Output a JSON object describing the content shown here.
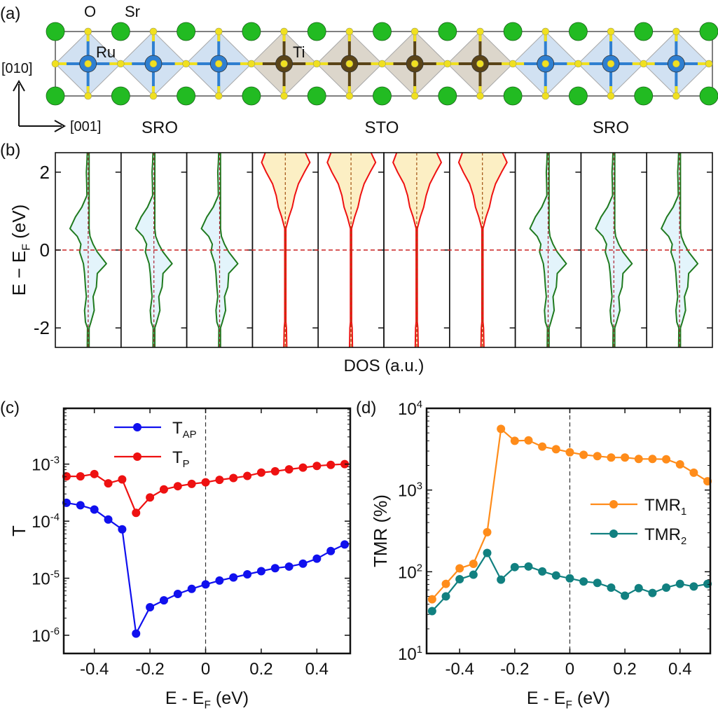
{
  "panel_labels": {
    "a": "(a)",
    "b": "(b)",
    "c": "(c)",
    "d": "(d)"
  },
  "structure": {
    "atom_labels": {
      "O": "O",
      "Sr": "Sr",
      "Ru": "Ru",
      "Ti": "Ti"
    },
    "axis_labels": {
      "vertical": "[010]",
      "horizontal": "[001]"
    },
    "region_labels": [
      "SRO",
      "STO",
      "SRO"
    ],
    "octahedra": [
      "Ru",
      "Ru",
      "Ru",
      "Ti",
      "Ti",
      "Ti",
      "Ti",
      "Ru",
      "Ru",
      "Ru"
    ],
    "colors": {
      "Sr": "#22bb22",
      "O": "#f0e020",
      "Ru": "#2f7fd0",
      "Ti": "#5a4418",
      "RuO6": "#c9dcf0",
      "TiO6": "#d6cfc2"
    }
  },
  "chart_data": [
    {
      "id": "b",
      "type": "area",
      "ylabel": "E − E_F (eV)",
      "ylabel_main": "E − E",
      "ylabel_sub": "F",
      "ylabel_tail": " (eV)",
      "xlabel": "DOS (a.u.)",
      "ylim": [
        -2.5,
        2.5
      ],
      "yticks": [
        2,
        0,
        -2
      ],
      "ytick_labels": [
        "2",
        "0",
        "-2"
      ],
      "layers": [
        "SRO",
        "SRO",
        "SRO",
        "STO",
        "STO",
        "STO",
        "STO",
        "SRO",
        "SRO",
        "SRO"
      ],
      "energy": [
        2.5,
        2.25,
        2.0,
        1.7,
        1.4,
        1.1,
        0.85,
        0.55,
        0.35,
        0.15,
        -0.05,
        -0.35,
        -0.6,
        -0.95,
        -1.2,
        -1.55,
        -1.85,
        -2.0,
        -2.5
      ],
      "dos": {
        "SRO": {
          "left": [
            0.05,
            0.07,
            0.1,
            0.08,
            0.07,
            0.35,
            0.7,
            1.0,
            0.6,
            0.4,
            0.47,
            0.26,
            0.2,
            0.15,
            0.1,
            0.2,
            0.15,
            0.04,
            0.05
          ],
          "right": [
            0.05,
            0.05,
            0.05,
            0.05,
            0.05,
            0.05,
            0.05,
            0.05,
            0.1,
            0.27,
            0.5,
            1.0,
            0.5,
            0.45,
            0.27,
            0.33,
            0.15,
            0.05,
            0.05
          ]
        },
        "STO": {
          "left": [
            1.1,
            1.3,
            1.05,
            0.7,
            0.5,
            0.38,
            0.2,
            0.03,
            0.03,
            0.03,
            0.03,
            0.03,
            0.03,
            0.03,
            0.03,
            0.03,
            0.03,
            0.06,
            0.08
          ],
          "right": [
            1.1,
            1.35,
            1.05,
            0.72,
            0.52,
            0.38,
            0.2,
            0.03,
            0.03,
            0.03,
            0.03,
            0.03,
            0.03,
            0.03,
            0.03,
            0.03,
            0.03,
            0.06,
            0.08
          ]
        }
      },
      "colors": {
        "SRO_line": "#1f7a1f",
        "SRO_fill": "#e3f4fb",
        "STO_line": "#ee1111",
        "STO_fill": "#fcefc4",
        "fermi": "#cc2222"
      }
    },
    {
      "id": "c",
      "type": "line",
      "xlabel_main": "E - E",
      "xlabel_sub": "F",
      "xlabel_tail": " (eV)",
      "ylabel": "T",
      "xlim": [
        -0.51,
        0.52
      ],
      "ylim": [
        4.8e-07,
        0.0095
      ],
      "yscale": "log",
      "xticks": [
        -0.4,
        -0.2,
        0,
        0.2,
        0.4
      ],
      "xtick_labels": [
        "-0.4",
        "-0.2",
        "0",
        "0.2",
        "0.4"
      ],
      "yticks": [
        0.001,
        0.0001,
        1e-05,
        1e-06
      ],
      "ytick_labels": [
        {
          "base": "10",
          "exp": "-3"
        },
        {
          "base": "10",
          "exp": "-4"
        },
        {
          "base": "10",
          "exp": "-5"
        },
        {
          "base": "10",
          "exp": "-6"
        }
      ],
      "legend_position": "top-left",
      "x": [
        -0.5,
        -0.45,
        -0.4,
        -0.35,
        -0.3,
        -0.25,
        -0.2,
        -0.15,
        -0.1,
        -0.05,
        0,
        0.05,
        0.1,
        0.15,
        0.2,
        0.25,
        0.3,
        0.35,
        0.4,
        0.45,
        0.5
      ],
      "series": [
        {
          "name_main": "T",
          "name_sub": "AP",
          "color": "#1010ee",
          "values": [
            0.00021,
            0.00019,
            0.00016,
            0.000107,
            7.2e-05,
            1.07e-06,
            3.1e-06,
            4.1e-06,
            5.3e-06,
            6.5e-06,
            7.8e-06,
            9.1e-06,
            1.03e-05,
            1.17e-05,
            1.33e-05,
            1.5e-05,
            1.6e-05,
            1.8e-05,
            2.2e-05,
            3e-05,
            3.9e-05
          ]
        },
        {
          "name_main": "T",
          "name_sub": "P",
          "color": "#ee1111",
          "values": [
            0.00061,
            0.00061,
            0.00067,
            0.00046,
            0.00054,
            0.00014,
            0.00026,
            0.00036,
            0.00041,
            0.00045,
            0.00048,
            0.00053,
            0.00057,
            0.00062,
            0.00071,
            0.00075,
            0.00081,
            0.00087,
            0.00093,
            0.00097,
            0.001
          ]
        }
      ]
    },
    {
      "id": "d",
      "type": "line",
      "xlabel_main": "E - E",
      "xlabel_sub": "F",
      "xlabel_tail": " (eV)",
      "ylabel": "TMR (%)",
      "xlim": [
        -0.52,
        0.51
      ],
      "ylim": [
        10,
        10000
      ],
      "yscale": "log",
      "xticks": [
        -0.4,
        -0.2,
        0,
        0.2,
        0.4
      ],
      "xtick_labels": [
        "-0.4",
        "-0.2",
        "0",
        "0.2",
        "0.4"
      ],
      "yticks": [
        10000,
        1000,
        100,
        10
      ],
      "ytick_labels": [
        {
          "base": "10",
          "exp": "4"
        },
        {
          "base": "10",
          "exp": "3"
        },
        {
          "base": "10",
          "exp": "2"
        },
        {
          "base": "10",
          "exp": "1"
        }
      ],
      "legend_position": "right",
      "x": [
        -0.5,
        -0.45,
        -0.4,
        -0.35,
        -0.3,
        -0.25,
        -0.2,
        -0.15,
        -0.1,
        -0.05,
        0,
        0.05,
        0.1,
        0.15,
        0.2,
        0.25,
        0.3,
        0.35,
        0.4,
        0.45,
        0.5
      ],
      "series": [
        {
          "name_main": "TMR",
          "name_sub": "1",
          "color": "#ff8c1a",
          "values": [
            46,
            71,
            110,
            125,
            305,
            5600,
            4000,
            4050,
            3400,
            3160,
            2900,
            2700,
            2600,
            2500,
            2500,
            2400,
            2400,
            2380,
            2060,
            1630,
            1280
          ]
        },
        {
          "name_main": "TMR",
          "name_sub": "2",
          "color": "#118080",
          "values": [
            33,
            50,
            81,
            92,
            170,
            80,
            114,
            116,
            101,
            90,
            83,
            76,
            73,
            64,
            51,
            63,
            55,
            64,
            71,
            66,
            71
          ]
        }
      ]
    }
  ]
}
